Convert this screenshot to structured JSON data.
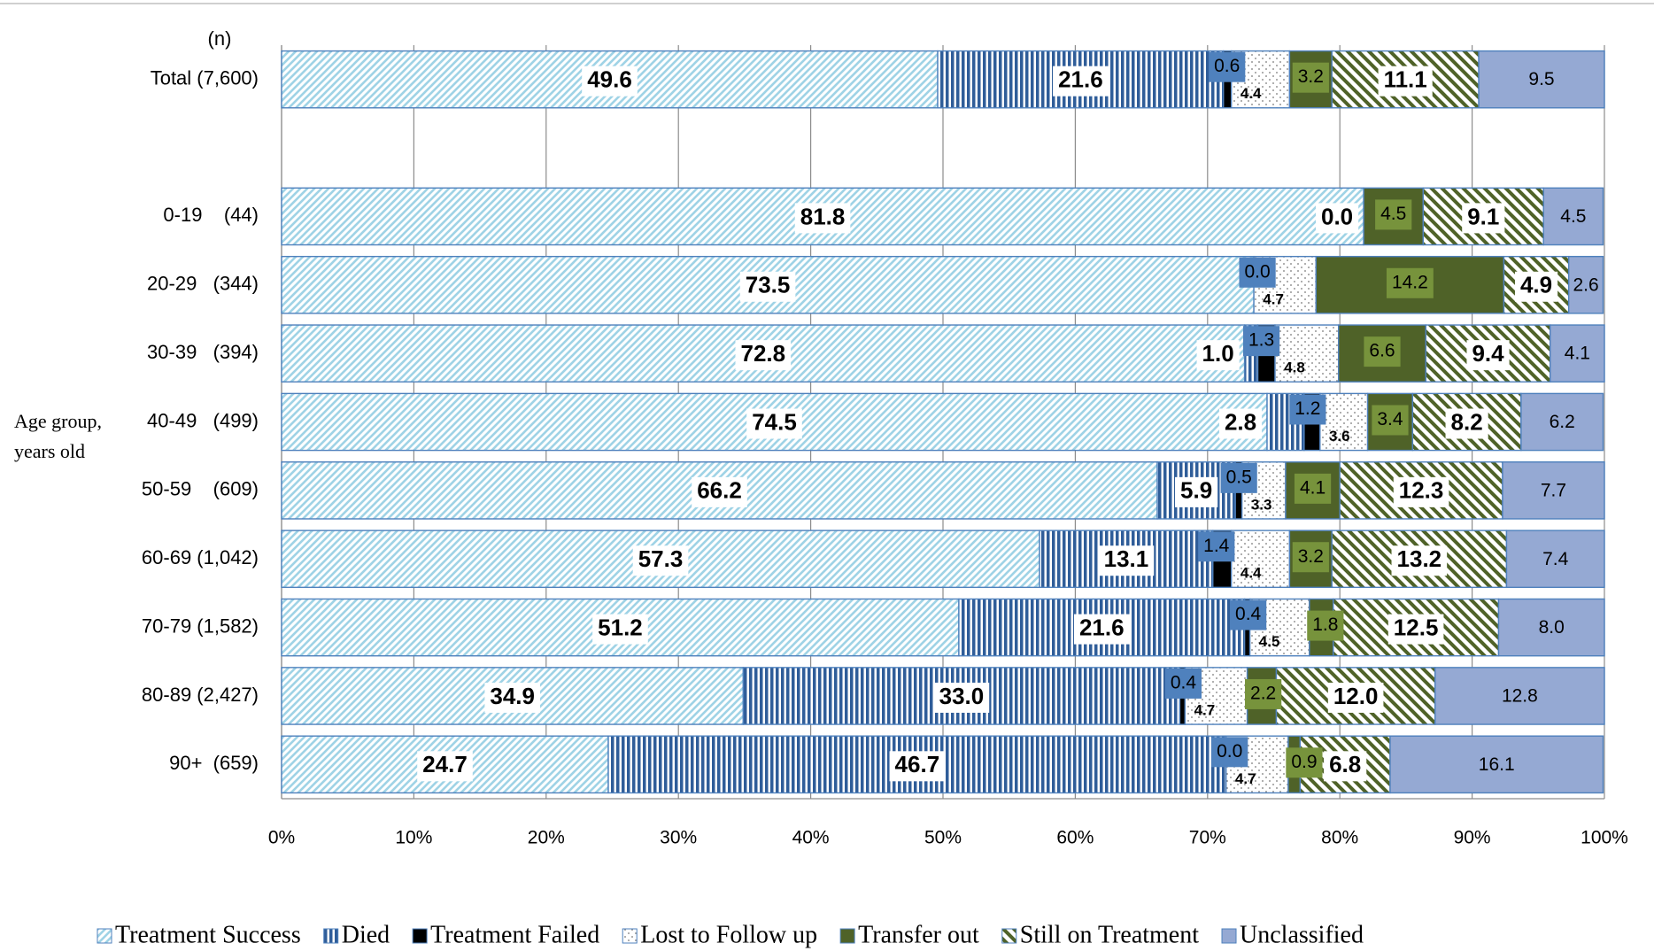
{
  "chart_data": {
    "type": "stacked-bar-horizontal",
    "header": "(n)",
    "y_axis_label": [
      "Age group,",
      "years old"
    ],
    "categories": [
      "Total (7,600)",
      null,
      "0-19    (44)",
      "20-29   (344)",
      "30-39   (394)",
      "40-49   (499)",
      "50-59    (609)",
      "60-69 (1,042)",
      "70-79 (1,582)",
      "80-89 (2,427)",
      "90+  (659)"
    ],
    "xlim": [
      0,
      100
    ],
    "xticks": [
      {
        "value": 0,
        "label": "0%"
      },
      {
        "value": 10,
        "label": "10%"
      },
      {
        "value": 20,
        "label": "20%"
      },
      {
        "value": 30,
        "label": "30%"
      },
      {
        "value": 40,
        "label": "40%"
      },
      {
        "value": 50,
        "label": "50%"
      },
      {
        "value": 60,
        "label": "60%"
      },
      {
        "value": 70,
        "label": "70%"
      },
      {
        "value": 80,
        "label": "80%"
      },
      {
        "value": 90,
        "label": "90%"
      },
      {
        "value": 100,
        "label": "100%"
      }
    ],
    "grid": true,
    "legend": "bottom",
    "series": [
      {
        "name": "Treatment Success",
        "color": "#9fd3e6",
        "values": [
          49.6,
          null,
          81.8,
          73.5,
          72.8,
          74.5,
          66.2,
          57.3,
          51.2,
          34.9,
          24.7
        ],
        "value_labels": [
          "49.6",
          null,
          "81.8",
          "73.5",
          "72.8",
          "74.5",
          "66.2",
          "57.3",
          "51.2",
          "34.9",
          "24.7"
        ]
      },
      {
        "name": "Died",
        "color": "#2f5d99",
        "values": [
          21.6,
          null,
          0.0,
          0.0,
          1.0,
          2.8,
          5.9,
          13.1,
          21.6,
          33.0,
          46.7
        ],
        "value_labels": [
          "21.6",
          null,
          "0.0",
          null,
          "1.0",
          "2.8",
          "5.9",
          "13.1",
          "21.6",
          "33.0",
          "46.7"
        ]
      },
      {
        "name": "Treatment Failed",
        "color": "#000000",
        "values": [
          0.6,
          null,
          0.0,
          0.0,
          1.3,
          1.2,
          0.5,
          1.4,
          0.4,
          0.4,
          0.0
        ],
        "value_labels": [
          "0.6",
          null,
          null,
          "0.0",
          "1.3",
          "1.2",
          "0.5",
          "1.4",
          "0.4",
          "0.4",
          "0.0"
        ]
      },
      {
        "name": "Lost to Follow up",
        "color": "#ffffff",
        "values": [
          4.4,
          null,
          0.0,
          4.7,
          4.8,
          3.6,
          3.3,
          4.4,
          4.5,
          4.7,
          4.7
        ],
        "value_labels": [
          "4.4",
          null,
          null,
          "4.7",
          "4.8",
          "3.6",
          "3.3",
          "4.4",
          "4.5",
          "4.7",
          "4.7"
        ]
      },
      {
        "name": "Transfer out",
        "color": "#4f6228",
        "values": [
          3.2,
          null,
          4.5,
          14.2,
          6.6,
          3.4,
          4.1,
          3.2,
          1.8,
          2.2,
          0.9
        ],
        "value_labels": [
          "3.2",
          null,
          "4.5",
          "14.2",
          "6.6",
          "3.4",
          "4.1",
          "3.2",
          "1.8",
          "2.2",
          "0.9"
        ]
      },
      {
        "name": "Still on Treatment",
        "color": "#4f6228",
        "values": [
          11.1,
          null,
          9.1,
          4.9,
          9.4,
          8.2,
          12.3,
          13.2,
          12.5,
          12.0,
          6.8
        ],
        "value_labels": [
          "11.1",
          null,
          "9.1",
          "4.9",
          "9.4",
          "8.2",
          "12.3",
          "13.2",
          "12.5",
          "12.0",
          "6.8"
        ]
      },
      {
        "name": "Unclassified",
        "color": "#95a9d3",
        "values": [
          9.5,
          null,
          4.5,
          2.6,
          4.1,
          6.2,
          7.7,
          7.4,
          8.0,
          12.8,
          16.1
        ],
        "value_labels": [
          "9.5",
          null,
          "4.5",
          "2.6",
          "4.1",
          "6.2",
          "7.7",
          "7.4",
          "8.0",
          "12.8",
          "16.1"
        ]
      }
    ]
  }
}
